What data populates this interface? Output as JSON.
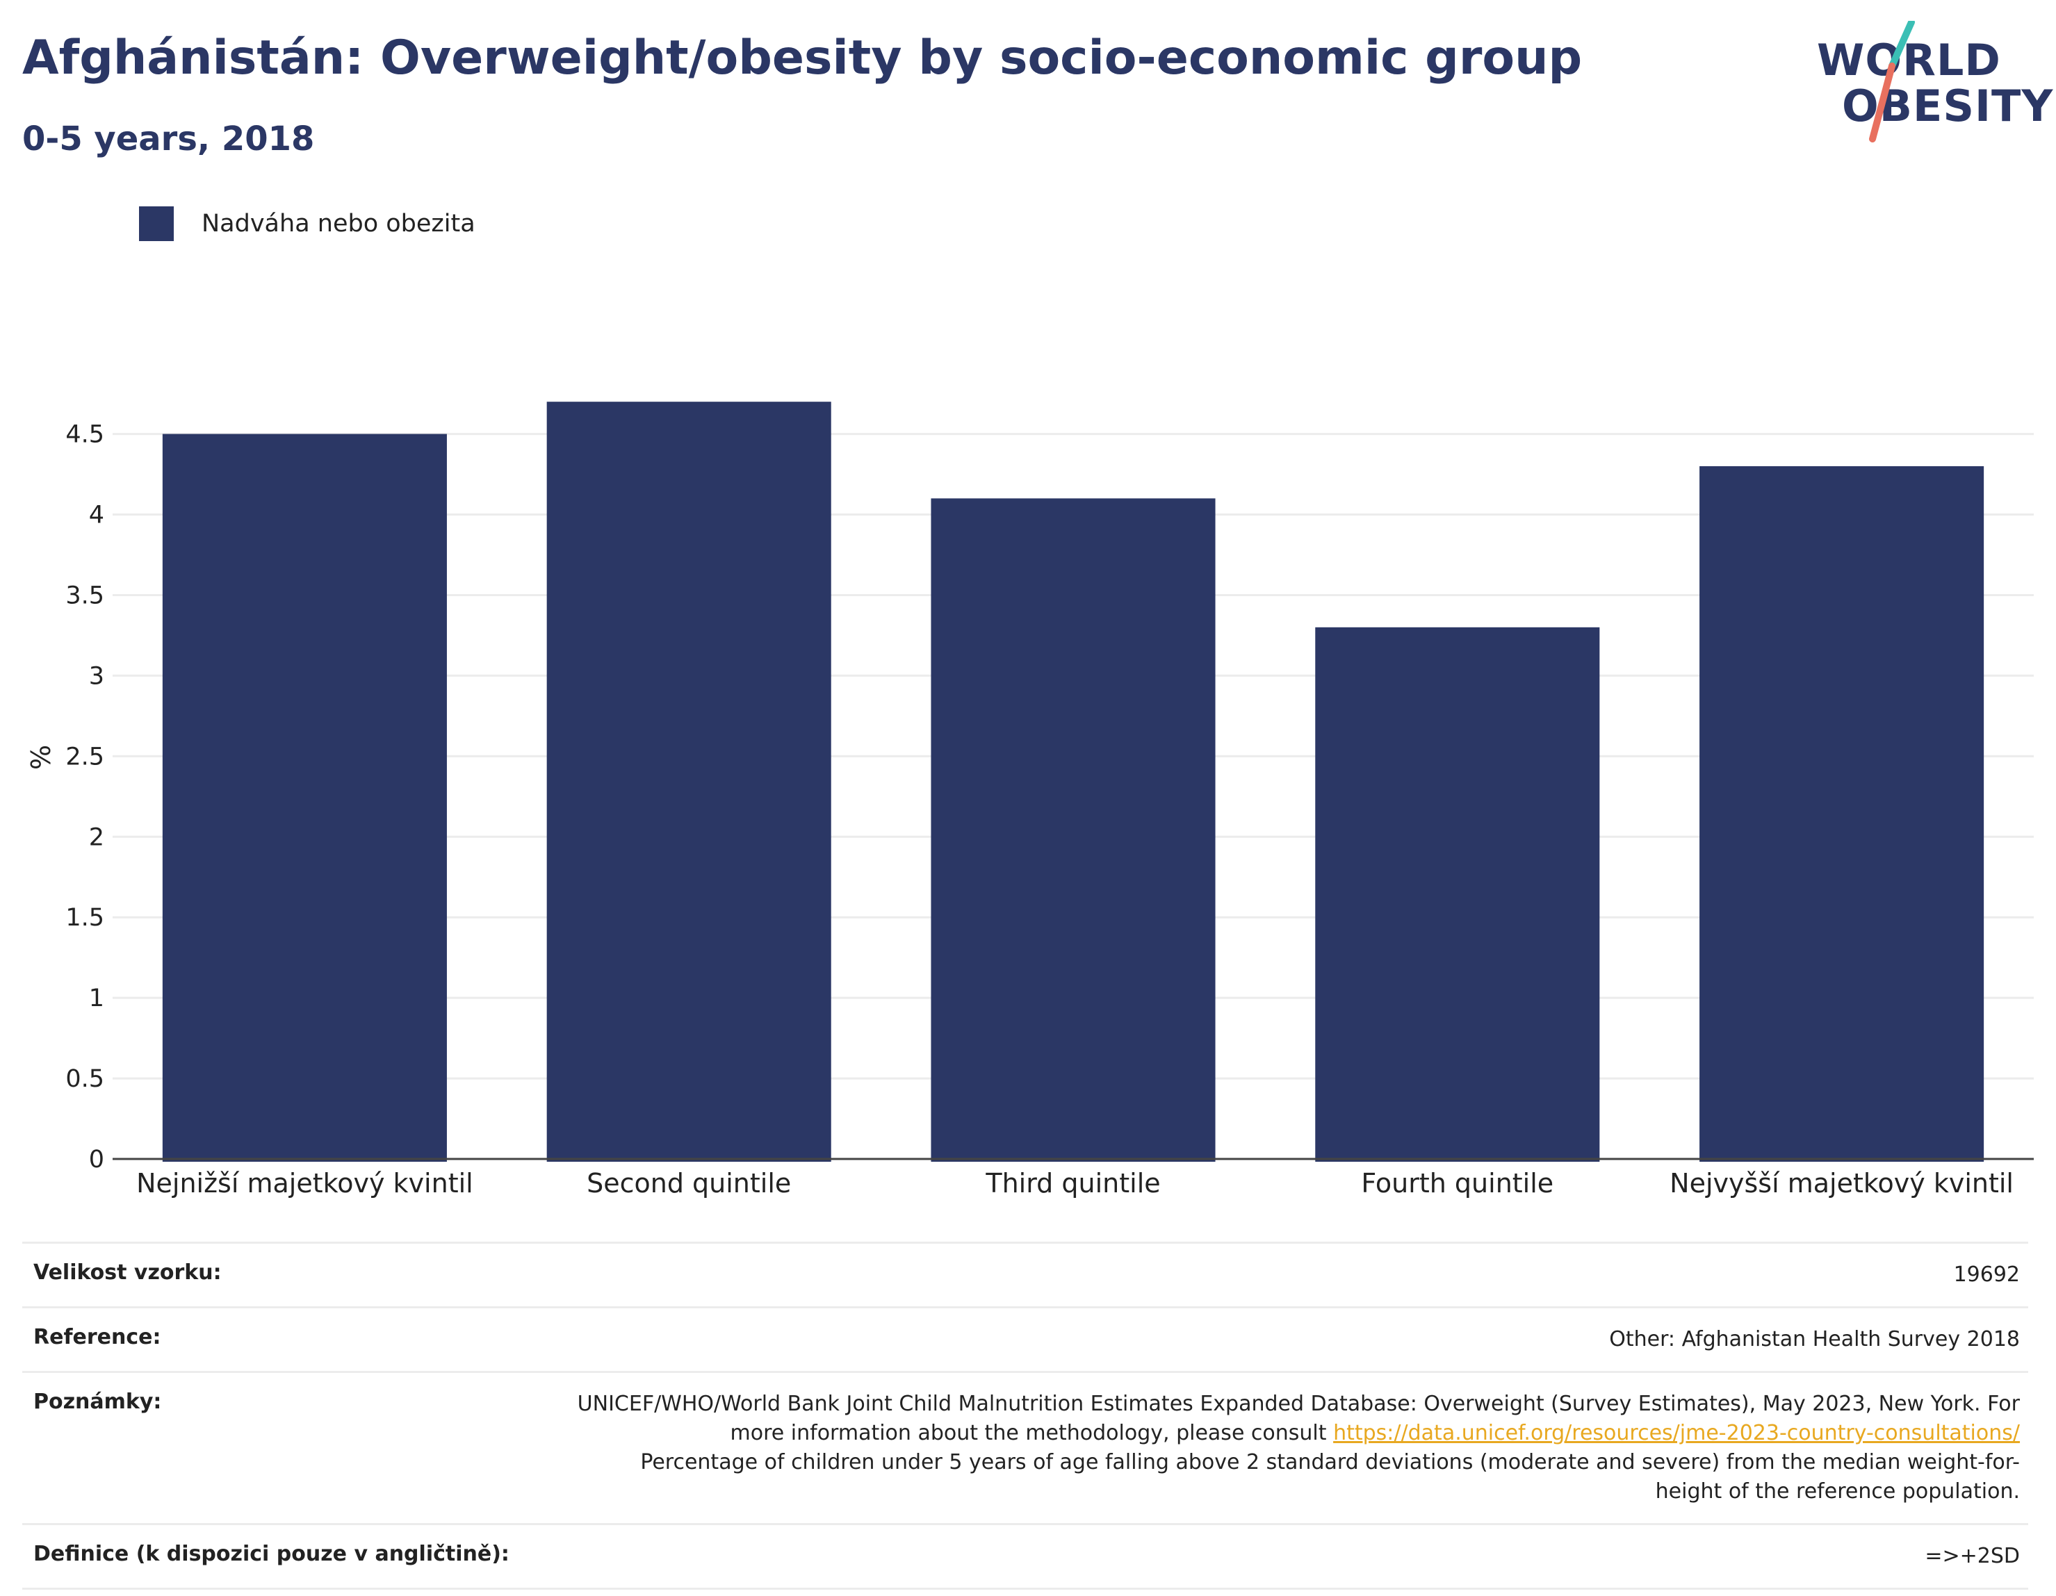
{
  "header": {
    "title": "Afghánistán: Overweight/obesity by socio-economic group",
    "subtitle": "0-5 years, 2018"
  },
  "logo": {
    "line1": "WORLD",
    "line2": "OBESITY",
    "accent_teal": "#3bbfb5",
    "accent_coral": "#e8705f"
  },
  "legend": {
    "label": "Nadváha nebo obezita",
    "color": "#2b3765"
  },
  "chart_data": {
    "type": "bar",
    "categories": [
      "Nejnižší majetkový kvintil",
      "Second quintile",
      "Third quintile",
      "Fourth quintile",
      "Nejvyšší majetkový kvintil"
    ],
    "series": [
      {
        "name": "Nadváha nebo obezita",
        "values": [
          4.5,
          4.7,
          4.1,
          3.3,
          4.3
        ],
        "color": "#2b3765"
      }
    ],
    "ylabel": "%",
    "ylim": [
      0,
      4.8
    ],
    "yticks": [
      "0",
      "0.5",
      "1",
      "1.5",
      "2",
      "2.5",
      "3",
      "3.5",
      "4",
      "4.5"
    ],
    "grid": true
  },
  "info": {
    "sample_key": "Velikost vzorku:",
    "sample_val": "19692",
    "reference_key": "Reference:",
    "reference_val": "Other: Afghanistan Health Survey 2018",
    "notes_key": "Poznámky:",
    "notes_text1": "UNICEF/WHO/World Bank Joint Child Malnutrition Estimates Expanded Database: Overweight (Survey Estimates), May 2023, New York. For more information about the methodology, please consult",
    "notes_link": "https://data.unicef.org/resources/jme-2023-country-consultations/",
    "notes_text2": "Percentage of children under 5 years of age falling above 2 standard deviations (moderate and severe) from the median weight-for-height of the reference population.",
    "definition_key": "Definice (k dispozici pouze v angličtině):",
    "definition_val": "=>+2SD"
  }
}
